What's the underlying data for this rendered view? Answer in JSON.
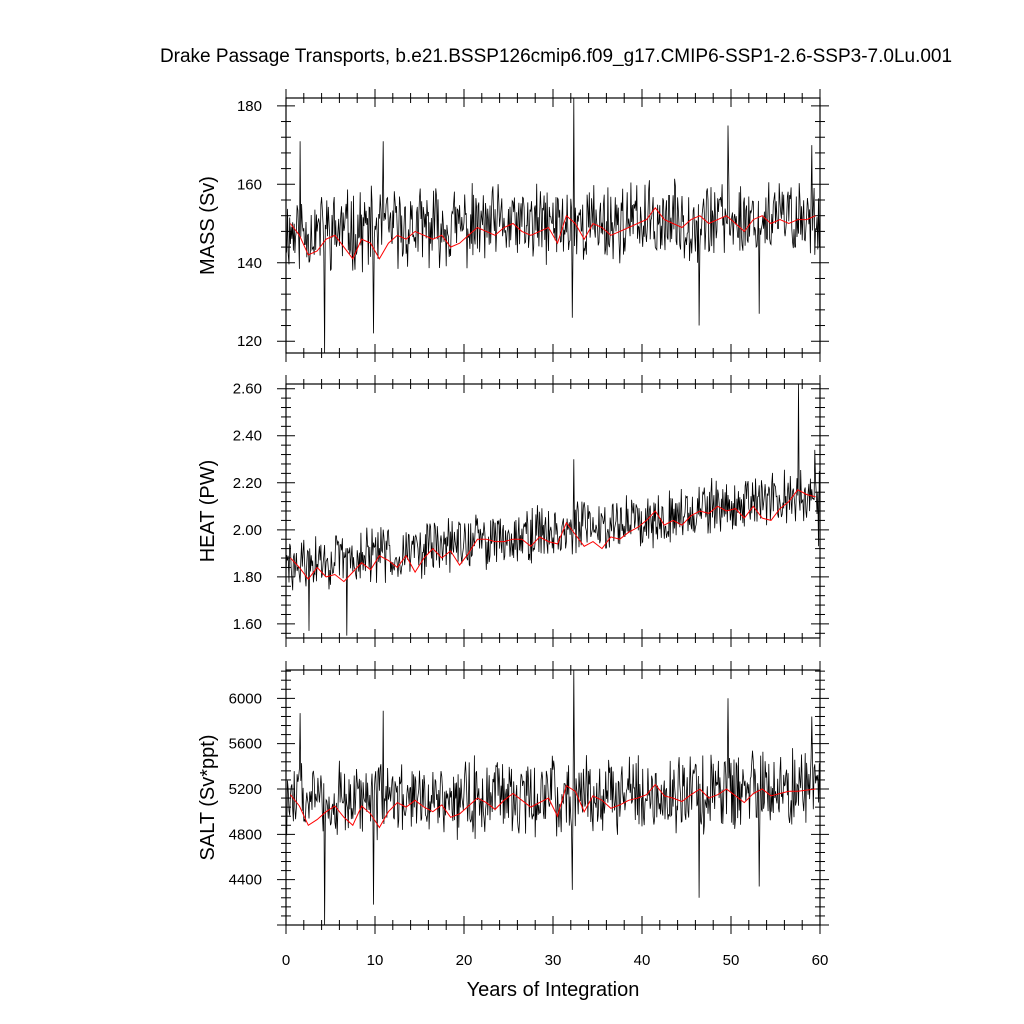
{
  "chart_data": {
    "type": "line",
    "title": "Drake Passage Transports, b.e21.BSSP126cmip6.f09_g17.CMIP6-SSP1-2.6-SSP3-7.0Lu.001",
    "xlabel": "Years of Integration",
    "xlim": [
      0,
      60
    ],
    "xticks": [
      0,
      10,
      20,
      30,
      40,
      50,
      60
    ],
    "series_colors": {
      "monthly": "#000000",
      "annual_mean": "#ff0000"
    },
    "panels": [
      {
        "name": "mass",
        "ylabel": "MASS (Sv)",
        "ylim": [
          117,
          182
        ],
        "yticks": [
          120,
          140,
          160,
          180
        ],
        "ytick_labels": [
          "120",
          "140",
          "160",
          "180"
        ],
        "annual_mean": {
          "x": [
            0.5,
            1.5,
            2.5,
            3.5,
            4.5,
            5.5,
            6.5,
            7.5,
            8.5,
            9.5,
            10.5,
            11.5,
            12.5,
            13.5,
            14.5,
            15.5,
            16.5,
            17.5,
            18.5,
            19.5,
            20.5,
            21.5,
            22.5,
            23.5,
            24.5,
            25.5,
            26.5,
            27.5,
            28.5,
            29.5,
            30.5,
            31.5,
            32.5,
            33.5,
            34.5,
            35.5,
            36.5,
            37.5,
            38.5,
            39.5,
            40.5,
            41.5,
            42.5,
            43.5,
            44.5,
            45.5,
            46.5,
            47.5,
            48.5,
            49.5,
            50.5,
            51.5,
            52.5,
            53.5,
            54.5,
            55.5,
            56.5,
            57.5,
            58.5,
            59.5
          ],
          "y": [
            150,
            147,
            142,
            143,
            146,
            147,
            144,
            141,
            146,
            145,
            141,
            145,
            147,
            146,
            148,
            147,
            146,
            147,
            144,
            145,
            147,
            149,
            148,
            147,
            149,
            150,
            148,
            147,
            148,
            149,
            145,
            152,
            150,
            146,
            150,
            149,
            147,
            148,
            149,
            150,
            151,
            154,
            151,
            150,
            149,
            151,
            152,
            150,
            151,
            152,
            150,
            148,
            151,
            152,
            150,
            151,
            150,
            151,
            151,
            152
          ]
        },
        "monthly": {
          "mean": 148,
          "amplitude": 8.5,
          "trend_per_year": 0.06,
          "noise_seed": 11,
          "spikes": [
            [
              1.6,
              171
            ],
            [
              4.3,
              117
            ],
            [
              9.8,
              122
            ],
            [
              10.9,
              171
            ],
            [
              32.3,
              182
            ],
            [
              32.2,
              126
            ],
            [
              46.4,
              124
            ],
            [
              49.7,
              175
            ],
            [
              53.2,
              127
            ],
            [
              59.1,
              170
            ]
          ]
        }
      },
      {
        "name": "heat",
        "ylabel": "HEAT (PW)",
        "ylim": [
          1.54,
          2.62
        ],
        "yticks": [
          1.6,
          1.8,
          2.0,
          2.2,
          2.4,
          2.6
        ],
        "ytick_labels": [
          "1.60",
          "1.80",
          "2.00",
          "2.20",
          "2.40",
          "2.60"
        ],
        "annual_mean": {
          "x": [
            0.5,
            1.5,
            2.5,
            3.5,
            4.5,
            5.5,
            6.5,
            7.5,
            8.5,
            9.5,
            10.5,
            11.5,
            12.5,
            13.5,
            14.5,
            15.5,
            16.5,
            17.5,
            18.5,
            19.5,
            20.5,
            21.5,
            22.5,
            23.5,
            24.5,
            25.5,
            26.5,
            27.5,
            28.5,
            29.5,
            30.5,
            31.5,
            32.5,
            33.5,
            34.5,
            35.5,
            36.5,
            37.5,
            38.5,
            39.5,
            40.5,
            41.5,
            42.5,
            43.5,
            44.5,
            45.5,
            46.5,
            47.5,
            48.5,
            49.5,
            50.5,
            51.5,
            52.5,
            53.5,
            54.5,
            55.5,
            56.5,
            57.5,
            58.5,
            59.5
          ],
          "y": [
            1.88,
            1.84,
            1.79,
            1.84,
            1.8,
            1.81,
            1.78,
            1.82,
            1.86,
            1.83,
            1.89,
            1.87,
            1.84,
            1.89,
            1.82,
            1.88,
            1.92,
            1.88,
            1.91,
            1.85,
            1.9,
            1.96,
            1.96,
            1.95,
            1.95,
            1.96,
            1.96,
            1.93,
            1.97,
            1.95,
            1.94,
            2.03,
            1.98,
            1.93,
            1.95,
            1.92,
            1.97,
            1.96,
            1.99,
            2.01,
            2.04,
            2.08,
            2.02,
            2.04,
            2.02,
            2.06,
            2.08,
            2.07,
            2.1,
            2.08,
            2.09,
            2.05,
            2.1,
            2.05,
            2.04,
            2.09,
            2.12,
            2.17,
            2.15,
            2.14
          ]
        },
        "monthly": {
          "mean": 1.84,
          "amplitude": 0.1,
          "trend_per_year": 0.0052,
          "noise_seed": 29,
          "spikes": [
            [
              2.6,
              1.57
            ],
            [
              6.8,
              1.55
            ],
            [
              32.3,
              2.3
            ],
            [
              57.6,
              2.62
            ],
            [
              58.3,
              2.18
            ],
            [
              59.4,
              2.34
            ],
            [
              59.8,
              1.93
            ]
          ]
        }
      },
      {
        "name": "salt",
        "ylabel": "SALT (Sv*ppt)",
        "ylim": [
          4000,
          6250
        ],
        "yticks": [
          4400,
          4800,
          5200,
          5600,
          6000
        ],
        "ytick_labels": [
          "4400",
          "4800",
          "5200",
          "5600",
          "6000"
        ],
        "annual_mean": {
          "x": [
            0.5,
            1.5,
            2.5,
            3.5,
            4.5,
            5.5,
            6.5,
            7.5,
            8.5,
            9.5,
            10.5,
            11.5,
            12.5,
            13.5,
            14.5,
            15.5,
            16.5,
            17.5,
            18.5,
            19.5,
            20.5,
            21.5,
            22.5,
            23.5,
            24.5,
            25.5,
            26.5,
            27.5,
            28.5,
            29.5,
            30.5,
            31.5,
            32.5,
            33.5,
            34.5,
            35.5,
            36.5,
            37.5,
            38.5,
            39.5,
            40.5,
            41.5,
            42.5,
            43.5,
            44.5,
            45.5,
            46.5,
            47.5,
            48.5,
            49.5,
            50.5,
            51.5,
            52.5,
            53.5,
            54.5,
            55.5,
            56.5,
            57.5,
            58.5,
            59.5
          ],
          "y": [
            5150,
            5050,
            4880,
            4930,
            5000,
            5050,
            4950,
            4880,
            5050,
            4980,
            4860,
            5000,
            5080,
            5040,
            5100,
            5040,
            5000,
            5060,
            4950,
            4980,
            5050,
            5120,
            5080,
            5020,
            5100,
            5160,
            5100,
            5040,
            5080,
            5120,
            4960,
            5230,
            5180,
            5000,
            5140,
            5100,
            5030,
            5060,
            5100,
            5120,
            5150,
            5240,
            5140,
            5120,
            5090,
            5150,
            5200,
            5120,
            5150,
            5200,
            5140,
            5080,
            5160,
            5200,
            5140,
            5160,
            5180,
            5180,
            5190,
            5200
          ]
        },
        "monthly": {
          "mean": 5100,
          "amplitude": 290,
          "trend_per_year": 1.5,
          "noise_seed": 47,
          "spikes": [
            [
              1.6,
              5870
            ],
            [
              4.3,
              4000
            ],
            [
              9.8,
              4180
            ],
            [
              10.9,
              5890
            ],
            [
              32.3,
              6250
            ],
            [
              32.2,
              4310
            ],
            [
              46.4,
              4240
            ],
            [
              49.7,
              6000
            ],
            [
              53.2,
              4340
            ],
            [
              59.1,
              5840
            ]
          ]
        }
      }
    ]
  }
}
